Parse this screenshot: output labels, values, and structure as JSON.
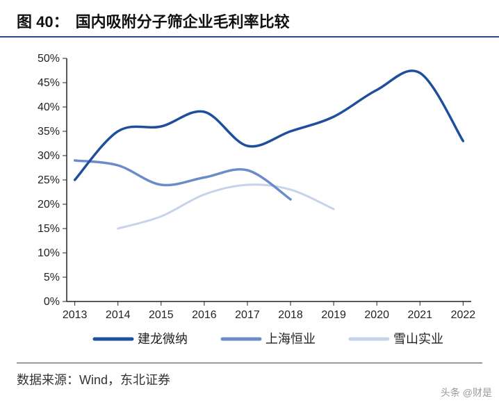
{
  "figure_label": "图 40：",
  "title": "国内吸附分子筛企业毛利率比较",
  "source_text": "数据来源：Wind，东北证券",
  "watermark": "头条 @财是",
  "chart": {
    "type": "line",
    "background_color": "#ffffff",
    "axis_color": "#222222",
    "ylabel_suffix": "%",
    "y": {
      "min": 0,
      "max": 50,
      "step": 5
    },
    "x_categories": [
      "2013",
      "2014",
      "2015",
      "2016",
      "2017",
      "2018",
      "2019",
      "2020",
      "2021",
      "2022"
    ],
    "axis_fontsize": 16,
    "legend_fontsize": 18,
    "series": [
      {
        "name": "建龙微纳",
        "color": "#1f4e9c",
        "stroke_width": 3.5,
        "values": [
          25,
          35,
          36,
          39,
          32,
          35,
          38,
          43.5,
          47,
          33
        ]
      },
      {
        "name": "上海恒业",
        "color": "#6a8dc9",
        "stroke_width": 3.5,
        "values": [
          29,
          28,
          24,
          25.5,
          27,
          21,
          null,
          null,
          null,
          null
        ]
      },
      {
        "name": "雪山实业",
        "color": "#c7d3e8",
        "stroke_width": 3,
        "values": [
          null,
          15,
          17.5,
          22,
          24,
          23,
          19,
          null,
          null,
          null
        ]
      }
    ],
    "legend_marker": "line"
  }
}
